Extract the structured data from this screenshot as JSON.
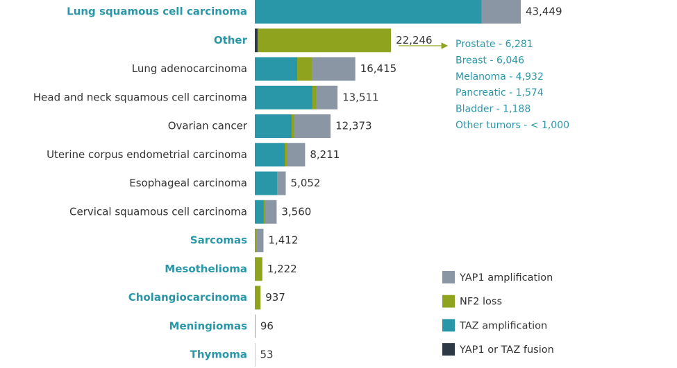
{
  "chart_data": {
    "type": "stacked_bar_horizontal",
    "categories": [
      "Lung squamous cell carcinoma",
      "Other",
      "Lung adenocarcinoma",
      "Head and neck squamous cell carcinoma",
      "Ovarian cancer",
      "Uterine corpus endometrial carcinoma",
      "Esophageal carcinoma",
      "Cervical squamous cell carcinoma",
      "Sarcomas",
      "Mesothelioma",
      "Cholangiocarcinoma",
      "Meningiomas",
      "Thymoma"
    ],
    "category_label_colors": [
      "#2a97a8",
      "#2a97a8",
      "#333333",
      "#333333",
      "#333333",
      "#333333",
      "#333333",
      "#333333",
      "#2a97a8",
      "#2a97a8",
      "#2a97a8",
      "#2a97a8",
      "#2a97a8"
    ],
    "series": [
      {
        "name": "YAP1 amplification",
        "color": "#8a96a3",
        "values": [
          6369,
          0,
          7115,
          3421,
          5913,
          2881,
          1422,
          1860,
          1182,
          0,
          0,
          0,
          0
        ]
      },
      {
        "name": "NF2 loss",
        "color": "#8fa31e",
        "values": [
          0,
          21796,
          2380,
          680,
          450,
          450,
          0,
          230,
          230,
          1222,
          937,
          96,
          53
        ]
      },
      {
        "name": "TAZ amplification",
        "color": "#2a97a8",
        "values": [
          37080,
          0,
          6920,
          9410,
          6010,
          4880,
          3630,
          1470,
          0,
          0,
          0,
          0,
          0
        ]
      },
      {
        "name": "YAP1 or TAZ fusion",
        "color": "#2d3a46",
        "values": [
          0,
          450,
          0,
          0,
          0,
          0,
          0,
          0,
          0,
          0,
          0,
          0,
          0
        ]
      }
    ],
    "totals": [
      43449,
      22246,
      16415,
      13511,
      12373,
      8211,
      5052,
      3560,
      1412,
      1222,
      937,
      96,
      53
    ],
    "total_labels": [
      "43,449",
      "22,246",
      "16,415",
      "13,511",
      "12,373",
      "8,211",
      "5,052",
      "3,560",
      "1,412",
      "1,222",
      "937",
      "96",
      "53"
    ],
    "xlim": [
      0,
      43449
    ],
    "annotations": [
      "Prostate - 6,281",
      "Breast - 6,046",
      "Melanoma - 4,932",
      "Pancreatic - 1,574",
      "Bladder - 1,188",
      "Other tumors - < 1,000"
    ]
  }
}
